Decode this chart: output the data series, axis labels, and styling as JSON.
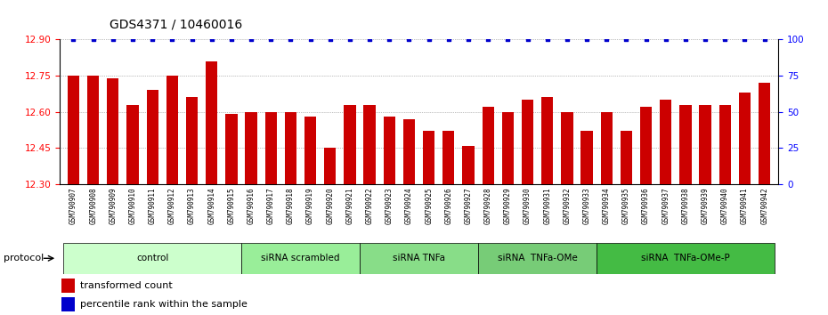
{
  "title": "GDS4371 / 10460016",
  "samples": [
    "GSM790907",
    "GSM790908",
    "GSM790909",
    "GSM790910",
    "GSM790911",
    "GSM790912",
    "GSM790913",
    "GSM790914",
    "GSM790915",
    "GSM790916",
    "GSM790917",
    "GSM790918",
    "GSM790919",
    "GSM790920",
    "GSM790921",
    "GSM790922",
    "GSM790923",
    "GSM790924",
    "GSM790925",
    "GSM790926",
    "GSM790927",
    "GSM790928",
    "GSM790929",
    "GSM790930",
    "GSM790931",
    "GSM790932",
    "GSM790933",
    "GSM790934",
    "GSM790935",
    "GSM790936",
    "GSM790937",
    "GSM790938",
    "GSM790939",
    "GSM790940",
    "GSM790941",
    "GSM790942"
  ],
  "bar_values": [
    12.75,
    12.75,
    12.74,
    12.63,
    12.69,
    12.75,
    12.66,
    12.81,
    12.59,
    12.6,
    12.6,
    12.6,
    12.58,
    12.45,
    12.63,
    12.63,
    12.58,
    12.57,
    12.52,
    12.52,
    12.46,
    12.62,
    12.6,
    12.65,
    12.66,
    12.6,
    12.52,
    12.6,
    12.52,
    12.62,
    12.65,
    12.63,
    12.63,
    12.63,
    12.68,
    12.72
  ],
  "groups": [
    {
      "label": "control",
      "start": 0,
      "end": 9,
      "color": "#ccffcc"
    },
    {
      "label": "siRNA scrambled",
      "start": 9,
      "end": 15,
      "color": "#99ee99"
    },
    {
      "label": "siRNA TNFa",
      "start": 15,
      "end": 21,
      "color": "#88dd88"
    },
    {
      "label": "siRNA  TNFa-OMe",
      "start": 21,
      "end": 27,
      "color": "#77cc77"
    },
    {
      "label": "siRNA  TNFa-OMe-P",
      "start": 27,
      "end": 36,
      "color": "#44bb44"
    }
  ],
  "ylim_left": [
    12.3,
    12.9
  ],
  "ylim_right": [
    0,
    100
  ],
  "yticks_left": [
    12.3,
    12.45,
    12.6,
    12.75,
    12.9
  ],
  "yticks_right": [
    0,
    25,
    50,
    75,
    100
  ],
  "bar_color": "#cc0000",
  "dot_color": "#0000cc",
  "bg_color": "#ffffff",
  "sample_area_color": "#cccccc",
  "title_fontsize": 10,
  "axis_fontsize": 7.5,
  "tick_fontsize": 5.5,
  "legend_fontsize": 8,
  "group_label_fontsize": 7.5
}
